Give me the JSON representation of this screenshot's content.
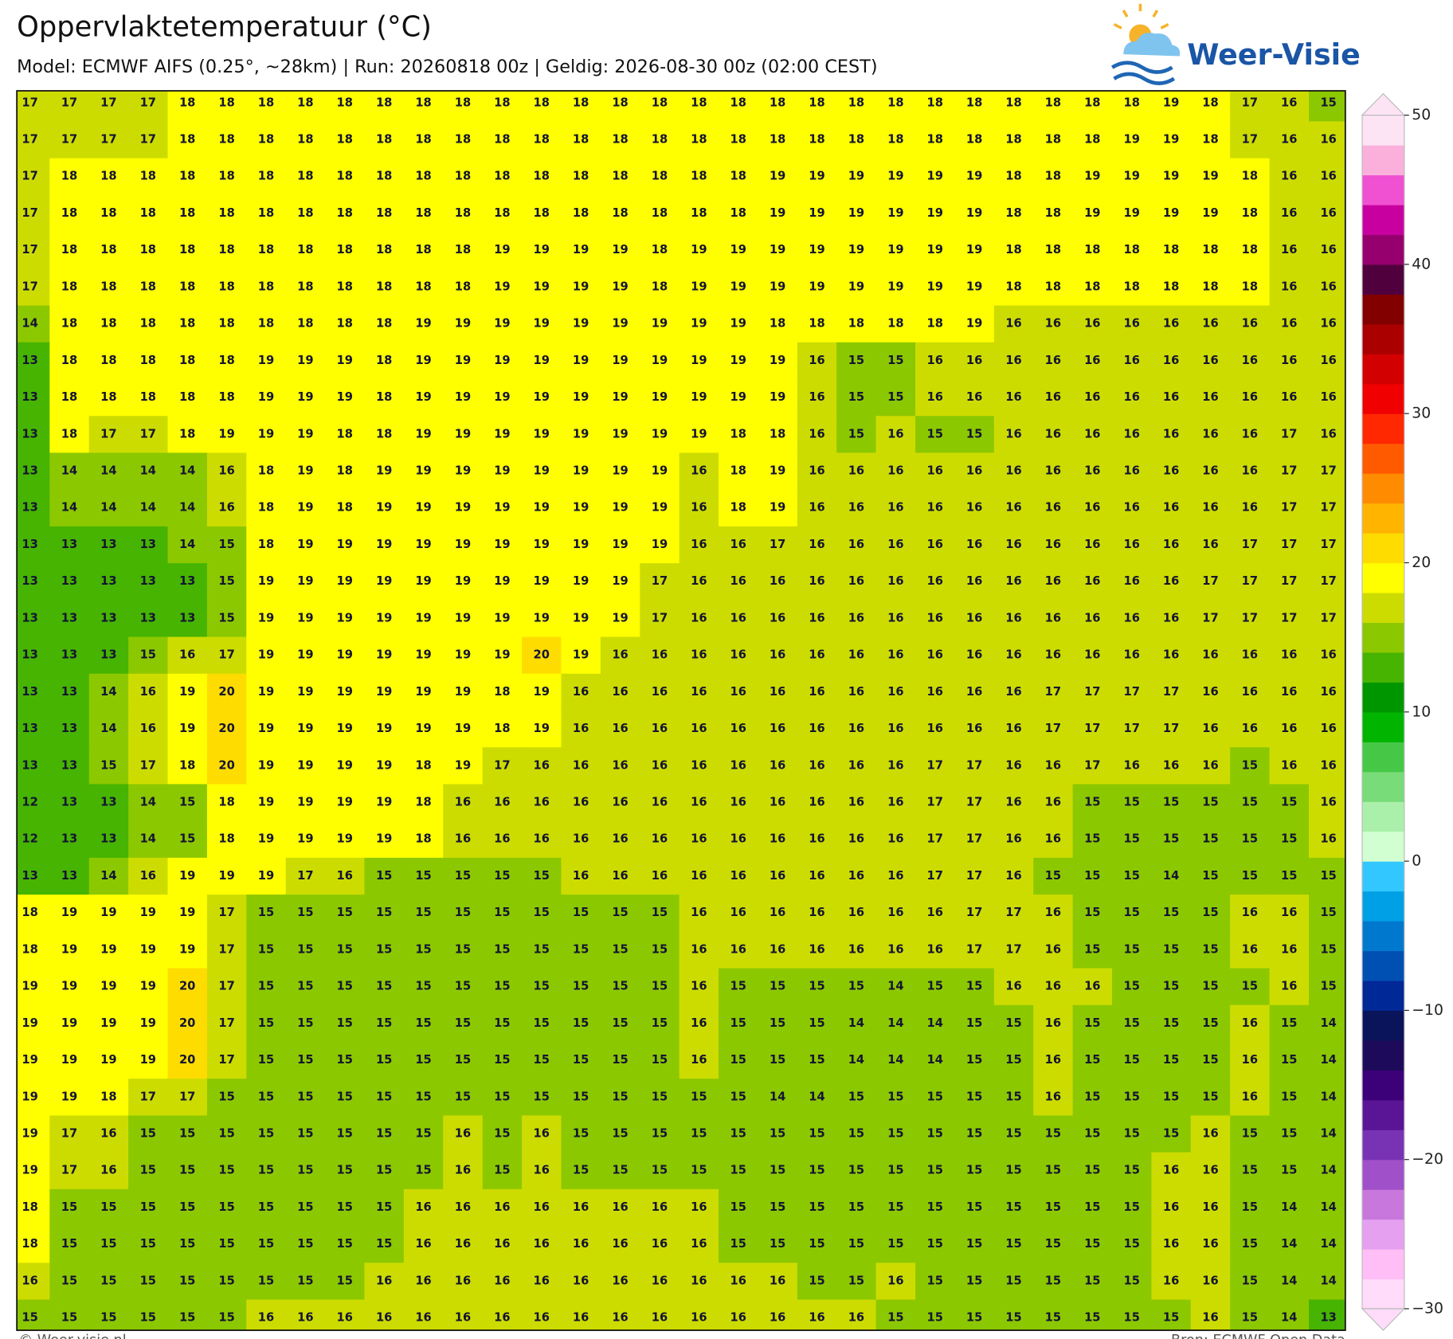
{
  "header": {
    "title": "Oppervlaktetemperatuur (°C)",
    "subtitle": "Model: ECMWF AIFS (0.25°, ~28km)  |  Run: 20260818 00z  |  Geldig: 2026-08-30 00z (02:00 CEST)",
    "logo": "Weer-Visie"
  },
  "map": {
    "values": [
      [
        17,
        17,
        17,
        17,
        18,
        18,
        18,
        18,
        18,
        18,
        18,
        18,
        18,
        18,
        18,
        18,
        18,
        18,
        18,
        18,
        18,
        18,
        18,
        18,
        18,
        18,
        18,
        18,
        18,
        19,
        18,
        17,
        16,
        15
      ],
      [
        17,
        17,
        17,
        17,
        18,
        18,
        18,
        18,
        18,
        18,
        18,
        18,
        18,
        18,
        18,
        18,
        18,
        18,
        18,
        18,
        18,
        18,
        18,
        18,
        18,
        18,
        18,
        18,
        19,
        19,
        18,
        17,
        16,
        16
      ],
      [
        17,
        18,
        18,
        18,
        18,
        18,
        18,
        18,
        18,
        18,
        18,
        18,
        18,
        18,
        18,
        18,
        18,
        18,
        18,
        19,
        19,
        19,
        19,
        19,
        19,
        18,
        18,
        19,
        19,
        19,
        19,
        18,
        16,
        16
      ],
      [
        17,
        18,
        18,
        18,
        18,
        18,
        18,
        18,
        18,
        18,
        18,
        18,
        18,
        18,
        18,
        18,
        18,
        18,
        18,
        19,
        19,
        19,
        19,
        19,
        19,
        18,
        18,
        19,
        19,
        19,
        19,
        18,
        16,
        16
      ],
      [
        17,
        18,
        18,
        18,
        18,
        18,
        18,
        18,
        18,
        18,
        18,
        18,
        19,
        19,
        19,
        19,
        18,
        19,
        19,
        19,
        19,
        19,
        19,
        19,
        19,
        18,
        18,
        18,
        18,
        18,
        18,
        18,
        16,
        16
      ],
      [
        17,
        18,
        18,
        18,
        18,
        18,
        18,
        18,
        18,
        18,
        18,
        18,
        19,
        19,
        19,
        19,
        18,
        19,
        19,
        19,
        19,
        19,
        19,
        19,
        19,
        18,
        18,
        18,
        18,
        18,
        18,
        18,
        16,
        16
      ],
      [
        14,
        18,
        18,
        18,
        18,
        18,
        18,
        18,
        18,
        18,
        19,
        19,
        19,
        19,
        19,
        19,
        19,
        19,
        19,
        18,
        18,
        18,
        18,
        18,
        19,
        16,
        16,
        16,
        16,
        16,
        16,
        16,
        16,
        16
      ],
      [
        13,
        18,
        18,
        18,
        18,
        18,
        19,
        19,
        19,
        18,
        19,
        19,
        19,
        19,
        19,
        19,
        19,
        19,
        19,
        19,
        16,
        15,
        15,
        16,
        16,
        16,
        16,
        16,
        16,
        16,
        16,
        16,
        16,
        16
      ],
      [
        13,
        18,
        18,
        18,
        18,
        18,
        19,
        19,
        19,
        18,
        19,
        19,
        19,
        19,
        19,
        19,
        19,
        19,
        19,
        19,
        16,
        15,
        15,
        16,
        16,
        16,
        16,
        16,
        16,
        16,
        16,
        16,
        16,
        16
      ],
      [
        13,
        18,
        17,
        17,
        18,
        19,
        19,
        19,
        18,
        18,
        19,
        19,
        19,
        19,
        19,
        19,
        19,
        19,
        18,
        18,
        16,
        15,
        16,
        15,
        15,
        16,
        16,
        16,
        16,
        16,
        16,
        16,
        17,
        16
      ],
      [
        13,
        14,
        14,
        14,
        14,
        16,
        18,
        19,
        18,
        19,
        19,
        19,
        19,
        19,
        19,
        19,
        19,
        16,
        18,
        19,
        16,
        16,
        16,
        16,
        16,
        16,
        16,
        16,
        16,
        16,
        16,
        16,
        17,
        17
      ],
      [
        13,
        14,
        14,
        14,
        14,
        16,
        18,
        19,
        18,
        19,
        19,
        19,
        19,
        19,
        19,
        19,
        19,
        16,
        18,
        19,
        16,
        16,
        16,
        16,
        16,
        16,
        16,
        16,
        16,
        16,
        16,
        16,
        17,
        17
      ],
      [
        13,
        13,
        13,
        13,
        14,
        15,
        18,
        19,
        19,
        19,
        19,
        19,
        19,
        19,
        19,
        19,
        19,
        16,
        16,
        17,
        16,
        16,
        16,
        16,
        16,
        16,
        16,
        16,
        16,
        16,
        16,
        17,
        17,
        17
      ],
      [
        13,
        13,
        13,
        13,
        13,
        15,
        19,
        19,
        19,
        19,
        19,
        19,
        19,
        19,
        19,
        19,
        17,
        16,
        16,
        16,
        16,
        16,
        16,
        16,
        16,
        16,
        16,
        16,
        16,
        16,
        17,
        17,
        17,
        17
      ],
      [
        13,
        13,
        13,
        13,
        13,
        15,
        19,
        19,
        19,
        19,
        19,
        19,
        19,
        19,
        19,
        19,
        17,
        16,
        16,
        16,
        16,
        16,
        16,
        16,
        16,
        16,
        16,
        16,
        16,
        16,
        17,
        17,
        17,
        17
      ],
      [
        13,
        13,
        13,
        15,
        16,
        17,
        19,
        19,
        19,
        19,
        19,
        19,
        19,
        20,
        19,
        16,
        16,
        16,
        16,
        16,
        16,
        16,
        16,
        16,
        16,
        16,
        16,
        16,
        16,
        16,
        16,
        16,
        16,
        16
      ],
      [
        13,
        13,
        14,
        16,
        19,
        20,
        19,
        19,
        19,
        19,
        19,
        19,
        18,
        19,
        16,
        16,
        16,
        16,
        16,
        16,
        16,
        16,
        16,
        16,
        16,
        16,
        17,
        17,
        17,
        17,
        16,
        16,
        16,
        16
      ],
      [
        13,
        13,
        14,
        16,
        19,
        20,
        19,
        19,
        19,
        19,
        19,
        19,
        18,
        19,
        16,
        16,
        16,
        16,
        16,
        16,
        16,
        16,
        16,
        16,
        16,
        16,
        17,
        17,
        17,
        17,
        16,
        16,
        16,
        16
      ],
      [
        13,
        13,
        15,
        17,
        18,
        20,
        19,
        19,
        19,
        19,
        18,
        19,
        17,
        16,
        16,
        16,
        16,
        16,
        16,
        16,
        16,
        16,
        16,
        17,
        17,
        16,
        16,
        17,
        16,
        16,
        16,
        15,
        16,
        16
      ],
      [
        12,
        13,
        13,
        14,
        15,
        18,
        19,
        19,
        19,
        19,
        18,
        16,
        16,
        16,
        16,
        16,
        16,
        16,
        16,
        16,
        16,
        16,
        16,
        17,
        17,
        16,
        16,
        15,
        15,
        15,
        15,
        15,
        15,
        16
      ],
      [
        12,
        13,
        13,
        14,
        15,
        18,
        19,
        19,
        19,
        19,
        18,
        16,
        16,
        16,
        16,
        16,
        16,
        16,
        16,
        16,
        16,
        16,
        16,
        17,
        17,
        16,
        16,
        15,
        15,
        15,
        15,
        15,
        15,
        16
      ],
      [
        13,
        13,
        14,
        16,
        19,
        19,
        19,
        17,
        16,
        15,
        15,
        15,
        15,
        15,
        16,
        16,
        16,
        16,
        16,
        16,
        16,
        16,
        16,
        17,
        17,
        16,
        15,
        15,
        15,
        14,
        15,
        15,
        15,
        15
      ],
      [
        18,
        19,
        19,
        19,
        19,
        17,
        15,
        15,
        15,
        15,
        15,
        15,
        15,
        15,
        15,
        15,
        15,
        16,
        16,
        16,
        16,
        16,
        16,
        16,
        17,
        17,
        16,
        15,
        15,
        15,
        15,
        16,
        16,
        15
      ],
      [
        18,
        19,
        19,
        19,
        19,
        17,
        15,
        15,
        15,
        15,
        15,
        15,
        15,
        15,
        15,
        15,
        15,
        16,
        16,
        16,
        16,
        16,
        16,
        16,
        17,
        17,
        16,
        15,
        15,
        15,
        15,
        16,
        16,
        15
      ],
      [
        19,
        19,
        19,
        19,
        20,
        17,
        15,
        15,
        15,
        15,
        15,
        15,
        15,
        15,
        15,
        15,
        15,
        16,
        15,
        15,
        15,
        15,
        14,
        15,
        15,
        16,
        16,
        16,
        15,
        15,
        15,
        15,
        16,
        15
      ],
      [
        19,
        19,
        19,
        19,
        20,
        17,
        15,
        15,
        15,
        15,
        15,
        15,
        15,
        15,
        15,
        15,
        15,
        16,
        15,
        15,
        15,
        14,
        14,
        14,
        15,
        15,
        16,
        15,
        15,
        15,
        15,
        16,
        15,
        14
      ],
      [
        19,
        19,
        19,
        19,
        20,
        17,
        15,
        15,
        15,
        15,
        15,
        15,
        15,
        15,
        15,
        15,
        15,
        16,
        15,
        15,
        15,
        14,
        14,
        14,
        15,
        15,
        16,
        15,
        15,
        15,
        15,
        16,
        15,
        14
      ],
      [
        19,
        19,
        18,
        17,
        17,
        15,
        15,
        15,
        15,
        15,
        15,
        15,
        15,
        15,
        15,
        15,
        15,
        15,
        15,
        14,
        14,
        15,
        15,
        15,
        15,
        15,
        16,
        15,
        15,
        15,
        15,
        16,
        15,
        14
      ],
      [
        19,
        17,
        16,
        15,
        15,
        15,
        15,
        15,
        15,
        15,
        15,
        16,
        15,
        16,
        15,
        15,
        15,
        15,
        15,
        15,
        15,
        15,
        15,
        15,
        15,
        15,
        15,
        15,
        15,
        15,
        16,
        15,
        15,
        14
      ],
      [
        19,
        17,
        16,
        15,
        15,
        15,
        15,
        15,
        15,
        15,
        15,
        16,
        15,
        16,
        15,
        15,
        15,
        15,
        15,
        15,
        15,
        15,
        15,
        15,
        15,
        15,
        15,
        15,
        15,
        16,
        16,
        15,
        15,
        14
      ],
      [
        18,
        15,
        15,
        15,
        15,
        15,
        15,
        15,
        15,
        15,
        16,
        16,
        16,
        16,
        16,
        16,
        16,
        16,
        15,
        15,
        15,
        15,
        15,
        15,
        15,
        15,
        15,
        15,
        15,
        16,
        16,
        15,
        14,
        14
      ],
      [
        18,
        15,
        15,
        15,
        15,
        15,
        15,
        15,
        15,
        15,
        16,
        16,
        16,
        16,
        16,
        16,
        16,
        16,
        15,
        15,
        15,
        15,
        15,
        15,
        15,
        15,
        15,
        15,
        15,
        16,
        16,
        15,
        14,
        14
      ],
      [
        16,
        15,
        15,
        15,
        15,
        15,
        15,
        15,
        15,
        16,
        16,
        16,
        16,
        16,
        16,
        16,
        16,
        16,
        16,
        16,
        15,
        15,
        16,
        15,
        15,
        15,
        15,
        15,
        15,
        16,
        16,
        15,
        14,
        14
      ],
      [
        15,
        15,
        15,
        15,
        15,
        15,
        16,
        16,
        16,
        16,
        16,
        16,
        16,
        16,
        16,
        16,
        16,
        16,
        16,
        16,
        16,
        16,
        15,
        15,
        15,
        15,
        15,
        15,
        15,
        15,
        16,
        15,
        14,
        13
      ]
    ]
  },
  "colorbar": {
    "lim": [
      -30,
      50
    ],
    "ticks": [
      50,
      40,
      30,
      20,
      10,
      0,
      {
        "value": -10,
        "label": "−10"
      },
      {
        "value": -20,
        "label": "−20"
      },
      {
        "value": -30,
        "label": "−30"
      }
    ],
    "colors": [
      "#ffdcfa",
      "#ffbef5",
      "#e6a0f0",
      "#c878dc",
      "#a050c8",
      "#7832b4",
      "#5a1496",
      "#3c0078",
      "#1e0a5a",
      "#0a145a",
      "#002896",
      "#0050b4",
      "#0078cd",
      "#00a0e6",
      "#32c8ff",
      "#d2ffd2",
      "#aaf0aa",
      "#78dc78",
      "#46c846",
      "#00b400",
      "#009600",
      "#46b400",
      "#8cc800",
      "#cddc00",
      "#ffff00",
      "#ffdc00",
      "#ffb400",
      "#ff8c00",
      "#ff5a00",
      "#ff2800",
      "#f00000",
      "#d20000",
      "#aa0000",
      "#820000",
      "#50003c",
      "#96006e",
      "#c800a0",
      "#f050d2",
      "#fbb0dc",
      "#fde4f4"
    ]
  },
  "footer": {
    "left": "© Weer-visie.nl",
    "right": "Bron: ECMWF Open Data"
  }
}
